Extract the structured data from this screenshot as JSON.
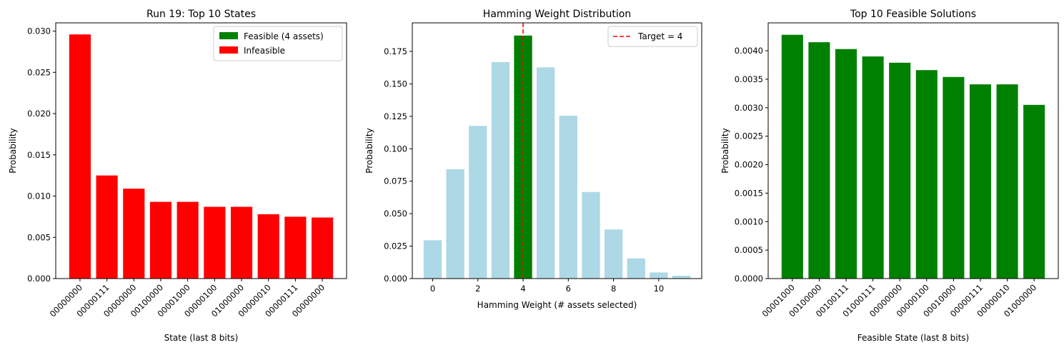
{
  "colors": {
    "feasible": "#008000",
    "infeasible": "#ff0000",
    "other": "#add8e6",
    "target_line": "#ff0000"
  },
  "chart_data": [
    {
      "type": "bar",
      "title": "Run 19: Top 10 States",
      "xlabel": "State (last 8 bits)",
      "ylabel": "Probability",
      "categories": [
        "00000000",
        "00000111",
        "00000000",
        "00100000",
        "00001000",
        "00000100",
        "01000000",
        "00000010",
        "00000111",
        "00000000"
      ],
      "values": [
        0.0296,
        0.0125,
        0.0109,
        0.0093,
        0.0093,
        0.0087,
        0.0087,
        0.0078,
        0.0075,
        0.0074
      ],
      "bar_color": "infeasible",
      "ylim": [
        0,
        0.031
      ],
      "yticks": [
        "0.000",
        "0.005",
        "0.010",
        "0.015",
        "0.020",
        "0.025",
        "0.030"
      ],
      "ytick_values": [
        0,
        0.005,
        0.01,
        0.015,
        0.02,
        0.025,
        0.03
      ],
      "grid": false,
      "legend": {
        "position": "top-right",
        "entries": [
          {
            "label": "Feasible (4 assets)",
            "color": "feasible",
            "kind": "patch"
          },
          {
            "label": "Infeasible",
            "color": "infeasible",
            "kind": "patch"
          }
        ]
      }
    },
    {
      "type": "bar",
      "title": "Hamming Weight Distribution",
      "xlabel": "Hamming Weight (# assets selected)",
      "ylabel": "Probability",
      "x": [
        0,
        1,
        2,
        3,
        4,
        5,
        6,
        7,
        8,
        9,
        10,
        11
      ],
      "values": [
        0.0295,
        0.0843,
        0.1176,
        0.1668,
        0.1872,
        0.1627,
        0.1255,
        0.0667,
        0.0378,
        0.0155,
        0.0047,
        0.0022
      ],
      "highlight_index": 4,
      "xlim": [
        -0.9,
        11.9
      ],
      "ylim": [
        0,
        0.197
      ],
      "xticks": [
        "0",
        "2",
        "4",
        "6",
        "8",
        "10"
      ],
      "xtick_values": [
        0,
        2,
        4,
        6,
        8,
        10
      ],
      "yticks": [
        "0.000",
        "0.025",
        "0.050",
        "0.075",
        "0.100",
        "0.125",
        "0.150",
        "0.175"
      ],
      "ytick_values": [
        0,
        0.025,
        0.05,
        0.075,
        0.1,
        0.125,
        0.15,
        0.175
      ],
      "target_line": {
        "x": 4,
        "label": "Target = 4"
      },
      "grid": false,
      "legend": {
        "position": "top-right",
        "entries": [
          {
            "label": "Target = 4",
            "color": "target_line",
            "kind": "dashed-line"
          }
        ]
      }
    },
    {
      "type": "bar",
      "title": "Top 10 Feasible Solutions",
      "xlabel": "Feasible State (last 8 bits)",
      "ylabel": "Probability",
      "categories": [
        "00001000",
        "00100000",
        "00100111",
        "01000111",
        "00000000",
        "00000100",
        "00010000",
        "00000111",
        "00000010",
        "01000000"
      ],
      "values": [
        0.00428,
        0.00415,
        0.00403,
        0.0039,
        0.00379,
        0.00366,
        0.00354,
        0.00341,
        0.00341,
        0.00305
      ],
      "bar_color": "feasible",
      "ylim": [
        0,
        0.00449
      ],
      "yticks": [
        "0.0000",
        "0.0005",
        "0.0010",
        "0.0015",
        "0.0020",
        "0.0025",
        "0.0030",
        "0.0035",
        "0.0040"
      ],
      "ytick_values": [
        0,
        0.0005,
        0.001,
        0.0015,
        0.002,
        0.0025,
        0.003,
        0.0035,
        0.004
      ],
      "grid": false
    }
  ]
}
